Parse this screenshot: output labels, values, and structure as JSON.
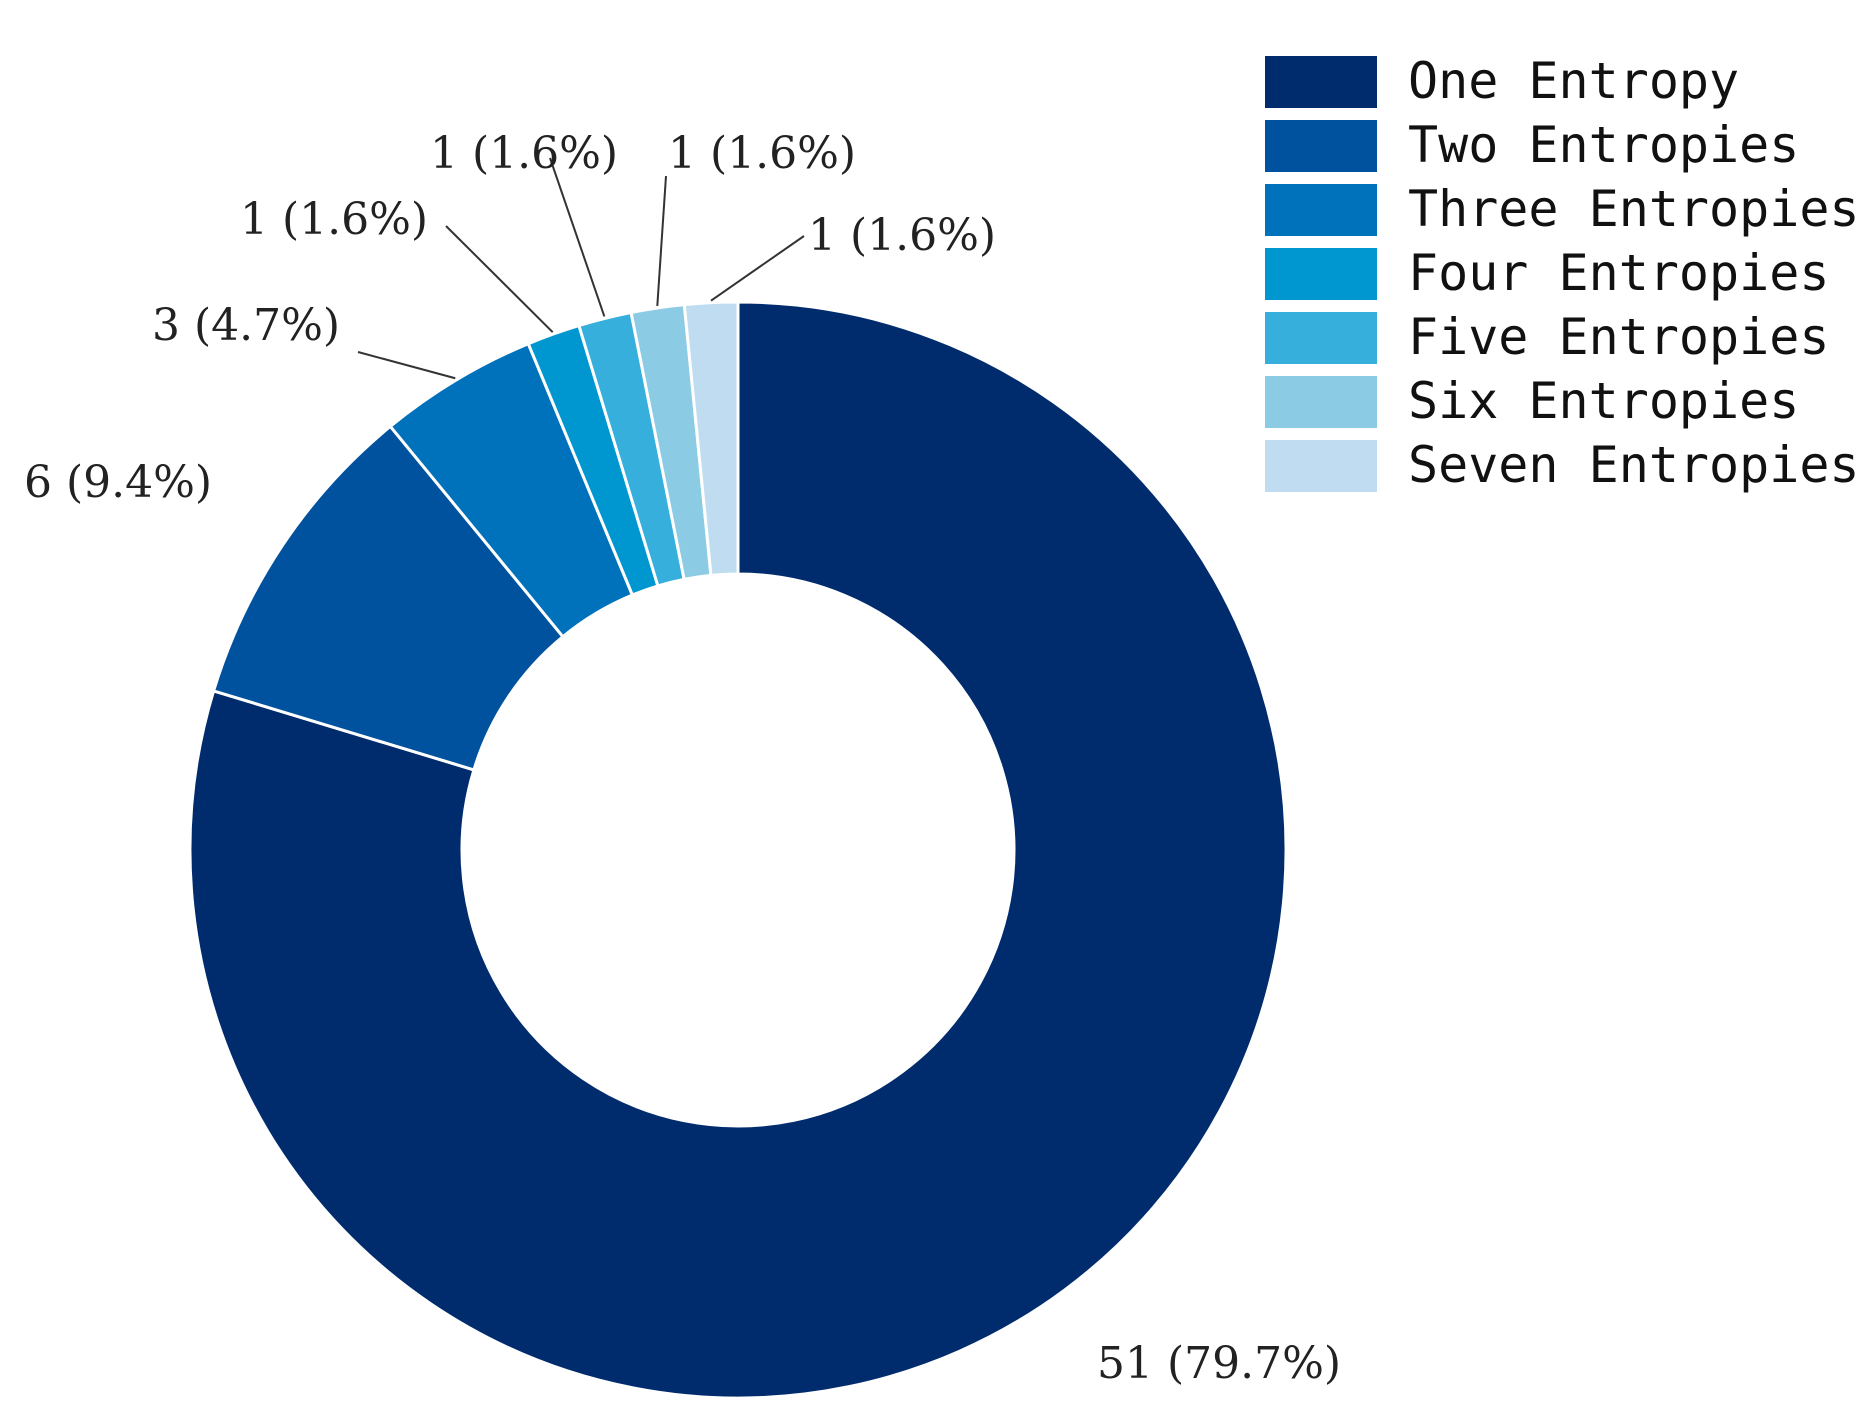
{
  "chart_data": {
    "type": "pie",
    "style": "donut",
    "title": "",
    "categories": [
      "One Entropy",
      "Two Entropies",
      "Three Entropies",
      "Four Entropies",
      "Five Entropies",
      "Six Entropies",
      "Seven Entropies"
    ],
    "values": [
      51,
      6,
      3,
      1,
      1,
      1,
      1
    ],
    "percent_labels": [
      "79.7%",
      "9.4%",
      "4.7%",
      "1.6%",
      "1.6%",
      "1.6%",
      "1.6%"
    ],
    "data_labels": [
      "51 (79.7%)",
      "6 (9.4%)",
      "3 (4.7%)",
      "1 (1.6%)",
      "1 (1.6%)",
      "1 (1.6%)",
      "1 (1.6%)"
    ],
    "colors": [
      "#002c6e",
      "#00519e",
      "#0071bb",
      "#0096cf",
      "#36afdc",
      "#8ccbe4",
      "#c0dcf0"
    ],
    "legend_position": "top-right",
    "start": "12 o'clock, clockwise"
  }
}
